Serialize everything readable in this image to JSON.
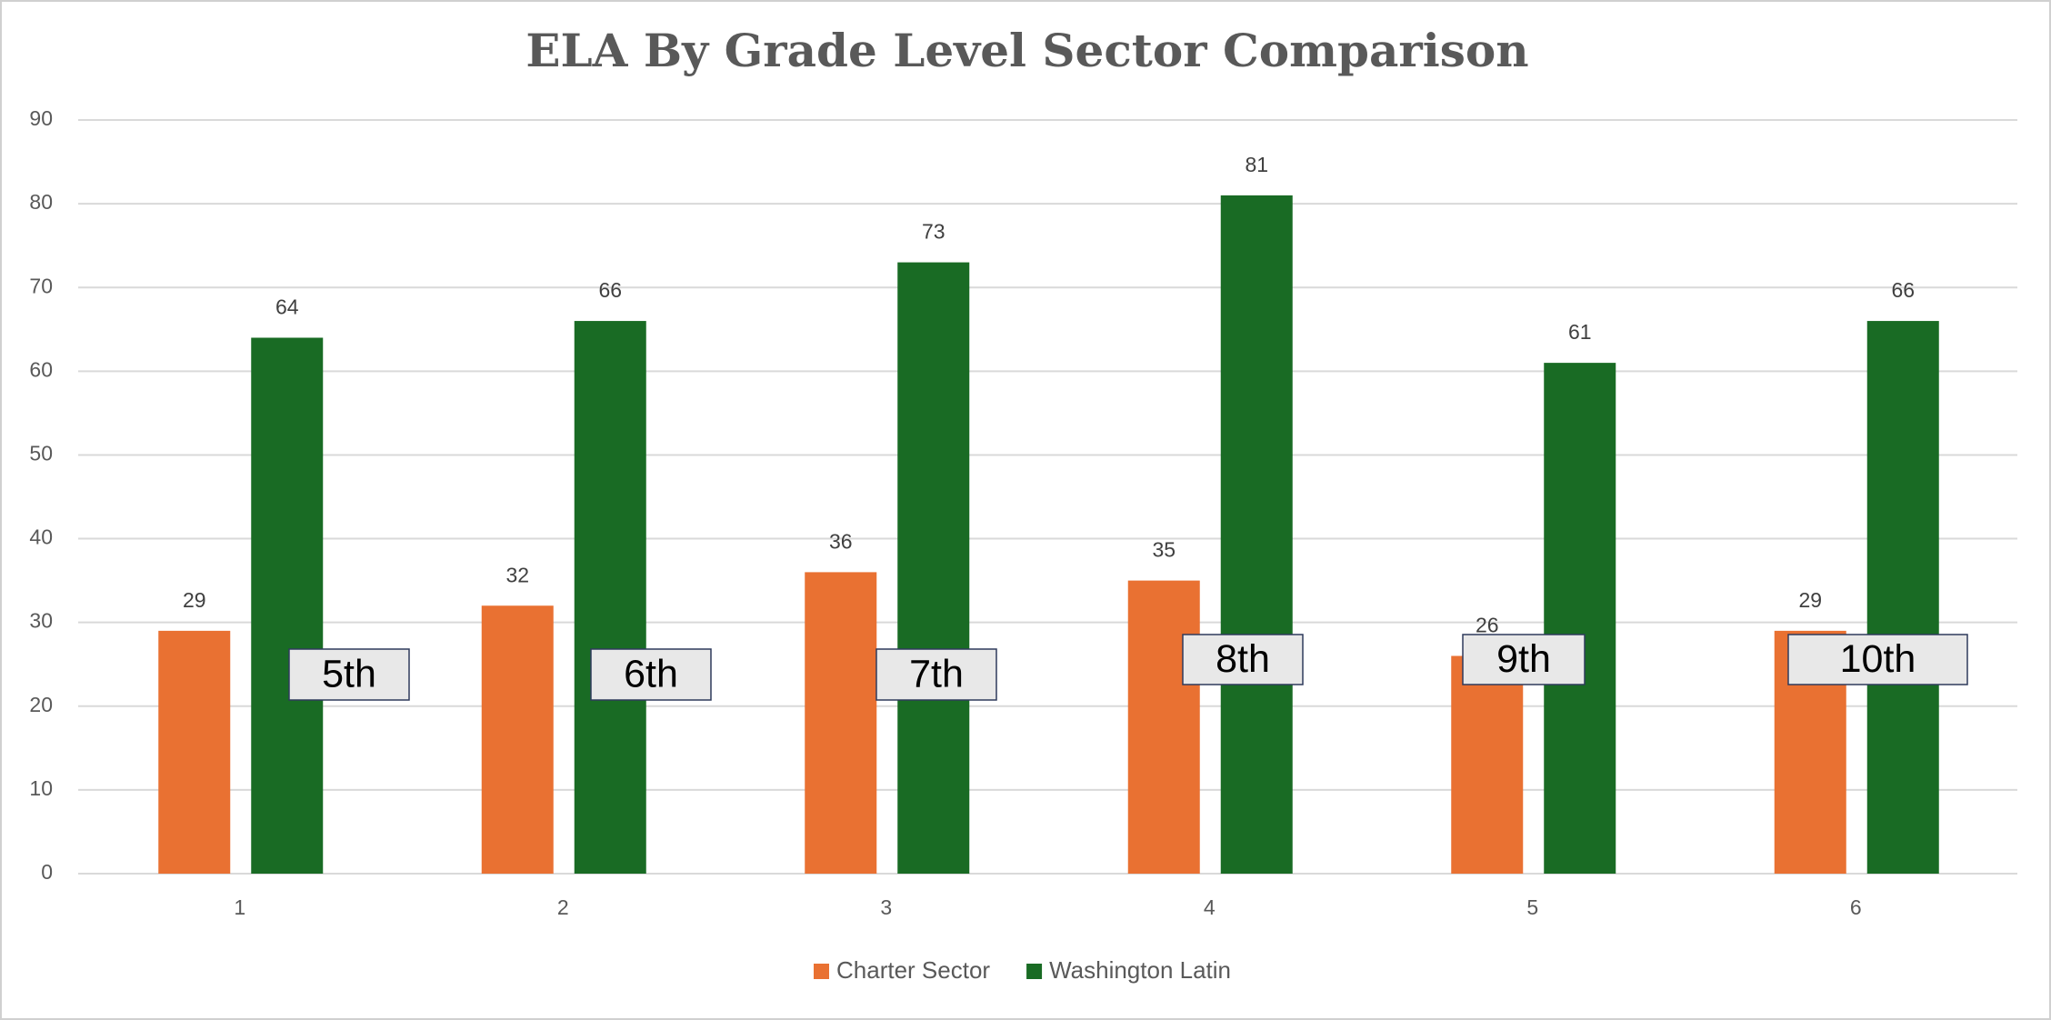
{
  "chart_data": {
    "type": "bar",
    "title": "ELA By Grade Level Sector Comparison",
    "categories": [
      "1",
      "2",
      "3",
      "4",
      "5",
      "6"
    ],
    "series": [
      {
        "name": "Charter Sector",
        "color": "#e97132",
        "values": [
          29,
          32,
          36,
          35,
          26,
          29
        ]
      },
      {
        "name": "Washington Latin",
        "color": "#196b24",
        "values": [
          64,
          66,
          73,
          81,
          61,
          66
        ]
      }
    ],
    "ylim": [
      0,
      90
    ],
    "yticks": [
      0,
      10,
      20,
      30,
      40,
      50,
      60,
      70,
      80,
      90
    ],
    "grid": true,
    "legend": "bottom",
    "annotations": [
      "5th",
      "6th",
      "7th",
      "8th",
      "9th",
      "10th"
    ]
  }
}
